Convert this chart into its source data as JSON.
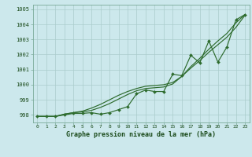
{
  "background_color": "#cce8ec",
  "grid_color": "#aacccc",
  "line_color": "#2d6b2d",
  "marker_color": "#2d6b2d",
  "xlabel": "Graphe pression niveau de la mer (hPa)",
  "ylim": [
    997.5,
    1005.3
  ],
  "xlim": [
    -0.5,
    23.5
  ],
  "yticks": [
    998,
    999,
    1000,
    1001,
    1002,
    1003,
    1004,
    1005
  ],
  "xticks": [
    0,
    1,
    2,
    3,
    4,
    5,
    6,
    7,
    8,
    9,
    10,
    11,
    12,
    13,
    14,
    15,
    16,
    17,
    18,
    19,
    20,
    21,
    22,
    23
  ],
  "series1": [
    997.9,
    997.9,
    997.9,
    998.0,
    998.1,
    998.1,
    998.15,
    998.05,
    998.15,
    998.35,
    998.55,
    999.4,
    999.65,
    999.55,
    999.55,
    1000.7,
    1000.6,
    1001.95,
    1001.45,
    1002.9,
    1001.5,
    1002.5,
    1004.3,
    1004.65
  ],
  "series2": [
    997.9,
    997.9,
    997.9,
    998.05,
    998.15,
    998.2,
    998.3,
    998.5,
    998.75,
    999.05,
    999.35,
    999.6,
    999.75,
    999.8,
    999.85,
    1000.05,
    1000.55,
    1001.2,
    1001.75,
    1002.35,
    1002.9,
    1003.4,
    1004.1,
    1004.65
  ],
  "series3": [
    997.9,
    997.9,
    997.9,
    998.05,
    998.15,
    998.25,
    998.45,
    998.7,
    999.0,
    999.3,
    999.55,
    999.75,
    999.9,
    999.95,
    1000.0,
    1000.15,
    1000.55,
    1001.1,
    1001.6,
    1002.15,
    1002.65,
    1003.15,
    1003.8,
    1004.6
  ]
}
